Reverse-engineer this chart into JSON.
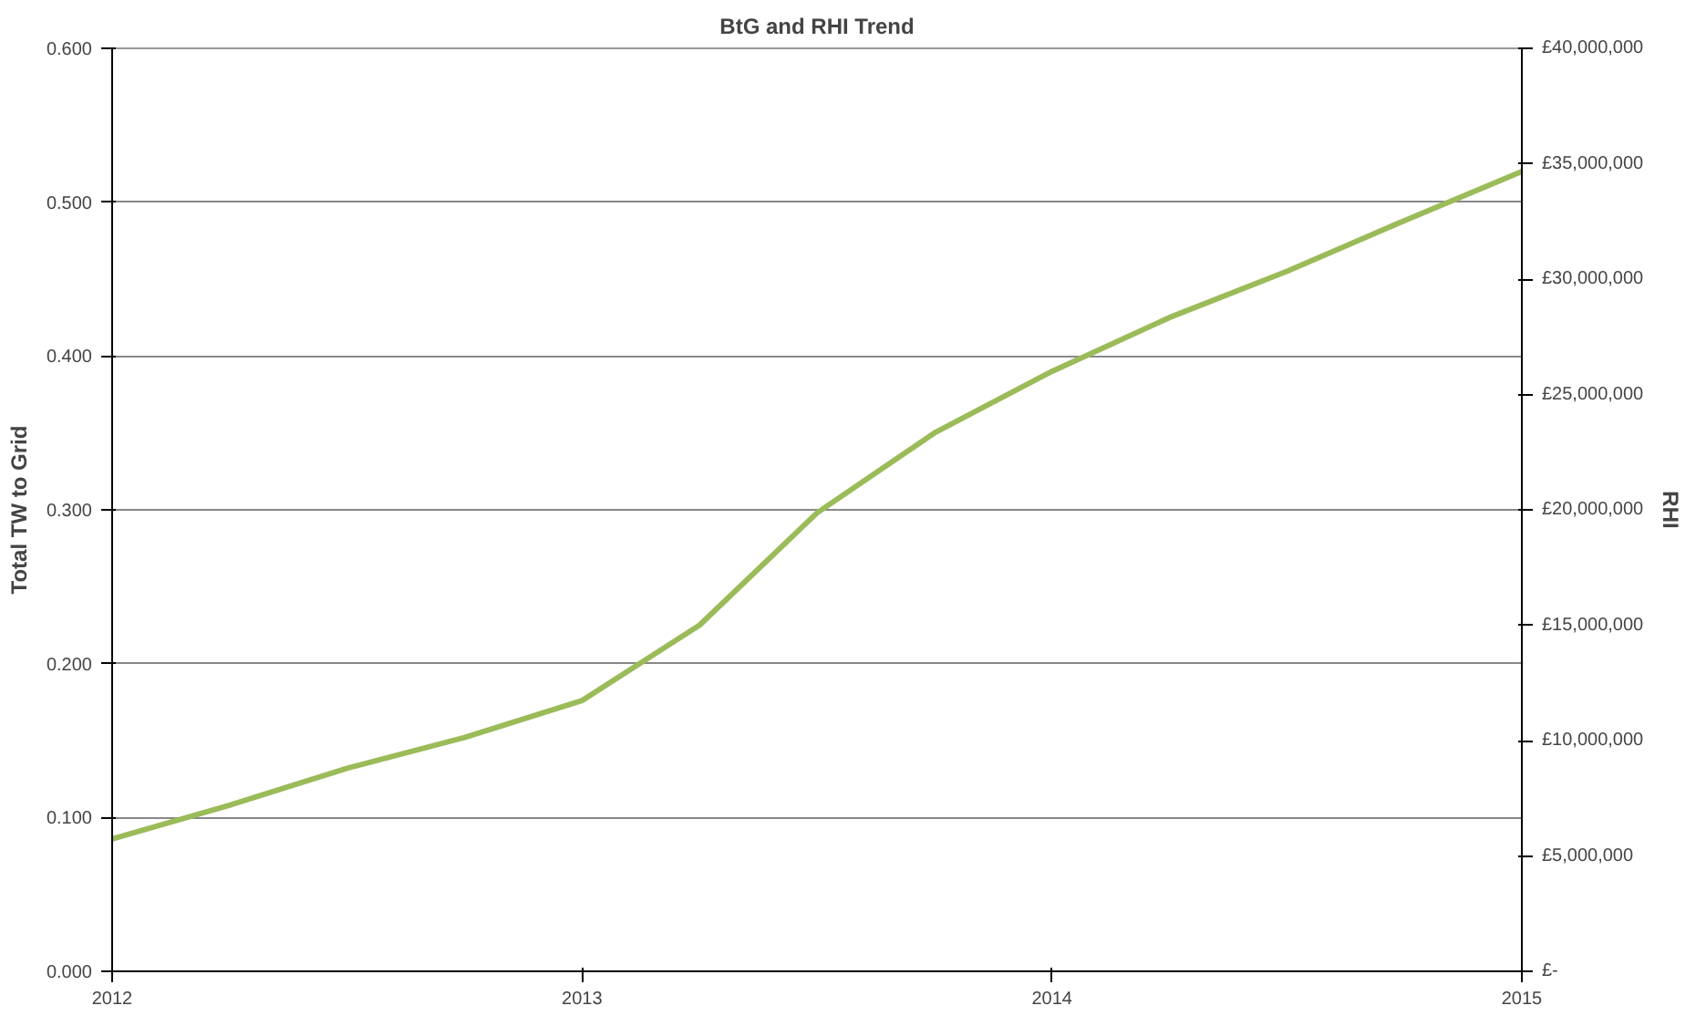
{
  "chart_data": {
    "type": "line",
    "title": "BtG and RHI Trend",
    "ylabel": "Total TW to Grid",
    "y2label": "RHI",
    "x": [
      2012,
      2012.25,
      2012.5,
      2012.75,
      2013,
      2013.25,
      2013.5,
      2013.75,
      2014,
      2014.25,
      2014.5,
      2014.75,
      2015
    ],
    "series": [
      {
        "color": "#9bbb59",
        "values": [
          0.086,
          0.108,
          0.132,
          0.152,
          0.176,
          0.225,
          0.298,
          0.35,
          0.39,
          0.425,
          0.455,
          0.488,
          0.52
        ]
      }
    ],
    "xlim": [
      2012,
      2015
    ],
    "xticks": [
      2012,
      2013,
      2014,
      2015
    ],
    "ylim": [
      0,
      0.6
    ],
    "yticks": [
      {
        "value": 0,
        "label": "0.000"
      },
      {
        "value": 0.1,
        "label": "0.100"
      },
      {
        "value": 0.2,
        "label": "0.200"
      },
      {
        "value": 0.3,
        "label": "0.300"
      },
      {
        "value": 0.4,
        "label": "0.400"
      },
      {
        "value": 0.5,
        "label": "0.500"
      },
      {
        "value": 0.6,
        "label": "0.600"
      }
    ],
    "y2lim": [
      0,
      40000000
    ],
    "y2ticks": [
      {
        "value": 0,
        "label": "£-"
      },
      {
        "value": 5000000,
        "label": "£5,000,000"
      },
      {
        "value": 10000000,
        "label": "£10,000,000"
      },
      {
        "value": 15000000,
        "label": "£15,000,000"
      },
      {
        "value": 20000000,
        "label": "£20,000,000"
      },
      {
        "value": 25000000,
        "label": "£25,000,000"
      },
      {
        "value": 30000000,
        "label": "£30,000,000"
      },
      {
        "value": 35000000,
        "label": "£35,000,000"
      },
      {
        "value": 40000000,
        "label": "£40,000,000"
      }
    ],
    "grid": "y",
    "line_style": "solid"
  }
}
